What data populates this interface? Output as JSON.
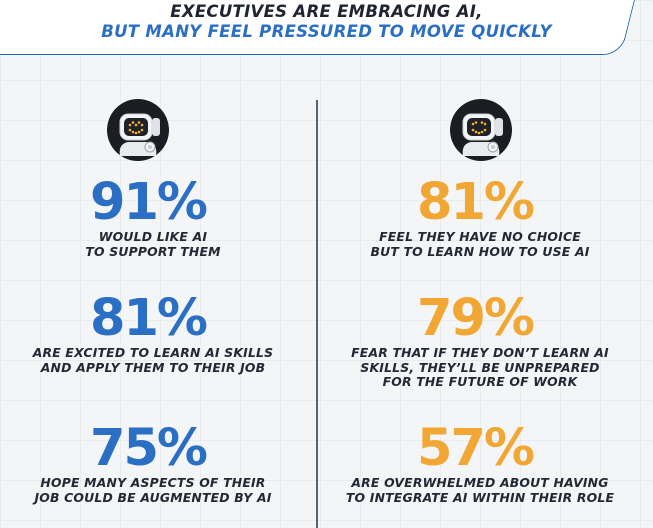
{
  "header": {
    "line1": "EXECUTIVES ARE EMBRACING AI,",
    "line2": "BUT MANY FEEL PRESSURED TO MOVE QUICKLY"
  },
  "left": {
    "icon": "robot-icon",
    "stats": [
      {
        "value": "91%",
        "caption": "WOULD LIKE AI\nTO SUPPORT THEM"
      },
      {
        "value": "81%",
        "caption": "ARE EXCITED TO LEARN AI SKILLS\nAND APPLY THEM TO THEIR JOB"
      },
      {
        "value": "75%",
        "caption": "HOPE MANY ASPECTS OF THEIR\nJOB COULD BE AUGMENTED BY AI"
      }
    ]
  },
  "right": {
    "icon": "robot-icon",
    "stats": [
      {
        "value": "81%",
        "caption": "FEEL THEY HAVE NO CHOICE\nBUT TO LEARN HOW TO USE AI"
      },
      {
        "value": "79%",
        "caption": "FEAR THAT IF THEY DON’T LEARN AI\nSKILLS, THEY’LL BE UNPREPARED\nFOR THE FUTURE OF WORK"
      },
      {
        "value": "57%",
        "caption": "ARE OVERWHELMED ABOUT HAVING\nTO INTEGRATE AI WITHIN THEIR ROLE"
      }
    ]
  },
  "colors": {
    "blue": "#2a6fc4",
    "orange": "#f2a735",
    "dark": "#222834",
    "robot_eyes": "#f2b233"
  }
}
